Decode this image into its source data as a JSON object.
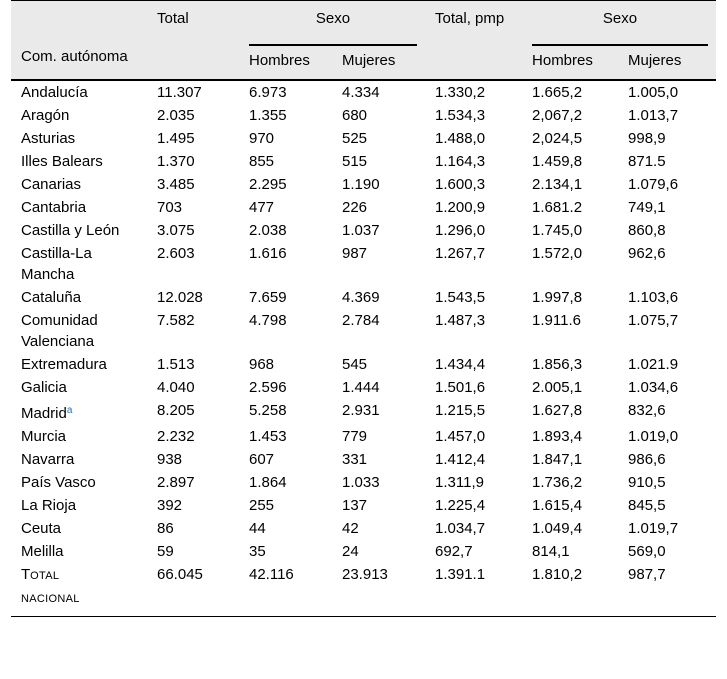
{
  "header": {
    "region_col": "Com. autónoma",
    "total": "Total",
    "sexo": "Sexo",
    "total_pmp": "Total, pmp",
    "sexo_pmp": "Sexo",
    "hombres": "Hombres",
    "mujeres": "Mujeres",
    "hombres_pmp": "Hombres",
    "mujeres_pmp": "Mujeres"
  },
  "rows": [
    {
      "region": "Andalucía",
      "total": "11.307",
      "hombres": "6.973",
      "mujeres": "4.334",
      "total_pmp": "1.330,2",
      "hombres_pmp": "1.665,2",
      "mujeres_pmp": "1.005,0"
    },
    {
      "region": "Aragón",
      "total": "2.035",
      "hombres": "1.355",
      "mujeres": "680",
      "total_pmp": "1.534,3",
      "hombres_pmp": "2,067,2",
      "mujeres_pmp": "1.013,7"
    },
    {
      "region": "Asturias",
      "total": "1.495",
      "hombres": "970",
      "mujeres": "525",
      "total_pmp": "1.488,0",
      "hombres_pmp": "2,024,5",
      "mujeres_pmp": "998,9"
    },
    {
      "region": "Illes Balears",
      "total": "1.370",
      "hombres": "855",
      "mujeres": "515",
      "total_pmp": "1.164,3",
      "hombres_pmp": "1.459,8",
      "mujeres_pmp": "871.5"
    },
    {
      "region": "Canarias",
      "total": "3.485",
      "hombres": "2.295",
      "mujeres": "1.190",
      "total_pmp": "1.600,3",
      "hombres_pmp": "2.134,1",
      "mujeres_pmp": "1.079,6"
    },
    {
      "region": "Cantabria",
      "total": "703",
      "hombres": "477",
      "mujeres": "226",
      "total_pmp": "1.200,9",
      "hombres_pmp": "1.681.2",
      "mujeres_pmp": "749,1"
    },
    {
      "region": "Castilla y León",
      "total": "3.075",
      "hombres": "2.038",
      "mujeres": "1.037",
      "total_pmp": "1.296,0",
      "hombres_pmp": "1.745,0",
      "mujeres_pmp": "860,8"
    },
    {
      "region": "Castilla-La Mancha",
      "total": "2.603",
      "hombres": "1.616",
      "mujeres": "987",
      "total_pmp": "1.267,7",
      "hombres_pmp": "1.572,0",
      "mujeres_pmp": "962,6"
    },
    {
      "region": "Cataluña",
      "total": "12.028",
      "hombres": "7.659",
      "mujeres": "4.369",
      "total_pmp": "1.543,5",
      "hombres_pmp": "1.997,8",
      "mujeres_pmp": "1.103,6"
    },
    {
      "region": "Comunidad Valenciana",
      "total": "7.582",
      "hombres": "4.798",
      "mujeres": "2.784",
      "total_pmp": "1.487,3",
      "hombres_pmp": "1.911.6",
      "mujeres_pmp": "1.075,7"
    },
    {
      "region": "Extremadura",
      "total": "1.513",
      "hombres": "968",
      "mujeres": "545",
      "total_pmp": "1.434,4",
      "hombres_pmp": "1.856,3",
      "mujeres_pmp": "1.021.9"
    },
    {
      "region": "Galicia",
      "total": "4.040",
      "hombres": "2.596",
      "mujeres": "1.444",
      "total_pmp": "1.501,6",
      "hombres_pmp": "2.005,1",
      "mujeres_pmp": "1.034,6"
    },
    {
      "region": "Madrid",
      "sup": "a",
      "total": "8.205",
      "hombres": "5.258",
      "mujeres": "2.931",
      "total_pmp": "1.215,5",
      "hombres_pmp": "1.627,8",
      "mujeres_pmp": "832,6"
    },
    {
      "region": "Murcia",
      "total": "2.232",
      "hombres": "1.453",
      "mujeres": "779",
      "total_pmp": "1.457,0",
      "hombres_pmp": "1.893,4",
      "mujeres_pmp": "1.019,0"
    },
    {
      "region": "Navarra",
      "total": "938",
      "hombres": "607",
      "mujeres": "331",
      "total_pmp": "1.412,4",
      "hombres_pmp": "1.847,1",
      "mujeres_pmp": "986,6"
    },
    {
      "region": "País Vasco",
      "total": "2.897",
      "hombres": "1.864",
      "mujeres": "1.033",
      "total_pmp": "1.311,9",
      "hombres_pmp": "1.736,2",
      "mujeres_pmp": "910,5"
    },
    {
      "region": "La Rioja",
      "total": "392",
      "hombres": "255",
      "mujeres": "137",
      "total_pmp": "1.225,4",
      "hombres_pmp": "1.615,4",
      "mujeres_pmp": "845,5"
    },
    {
      "region": "Ceuta",
      "total": "86",
      "hombres": "44",
      "mujeres": "42",
      "total_pmp": "1.034,7",
      "hombres_pmp": "1.049,4",
      "mujeres_pmp": "1.019,7"
    },
    {
      "region": "Melilla",
      "total": "59",
      "hombres": "35",
      "mujeres": "24",
      "total_pmp": "692,7",
      "hombres_pmp": "814,1",
      "mujeres_pmp": "569,0"
    }
  ],
  "total_row": {
    "label_cap": "T",
    "label_rest": "otal",
    "label_line2": "nacional",
    "total": "66.045",
    "hombres": "42.116",
    "mujeres": "23.913",
    "total_pmp": "1.391.1",
    "hombres_pmp": "1.810,2",
    "mujeres_pmp": "987,7"
  }
}
